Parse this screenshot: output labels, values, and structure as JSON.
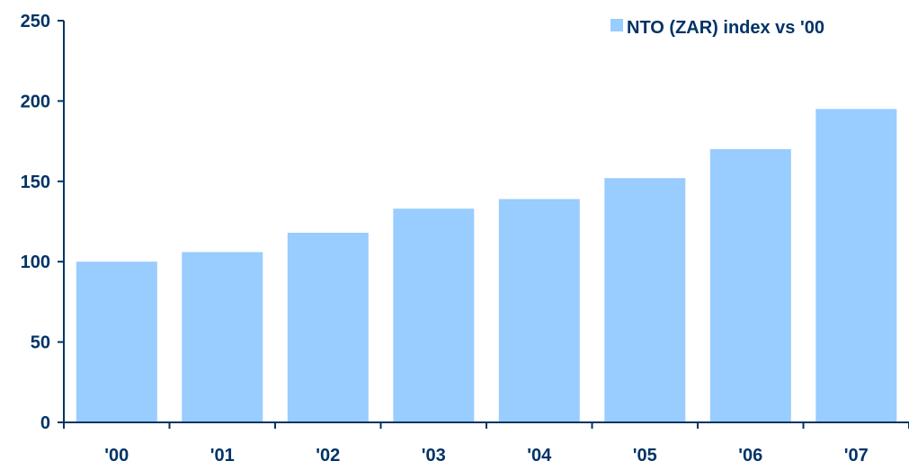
{
  "chart_data": {
    "type": "bar",
    "categories": [
      "'00",
      "'01",
      "'02",
      "'03",
      "'04",
      "'05",
      "'06",
      "'07"
    ],
    "series": [
      {
        "name": "NTO (ZAR) index vs '00",
        "values": [
          100,
          106,
          118,
          133,
          139,
          152,
          170,
          195
        ]
      }
    ],
    "ylim": [
      0,
      250
    ],
    "yticks": [
      0,
      50,
      100,
      150,
      200,
      250
    ],
    "ytick_labels": [
      "0",
      "50",
      "100",
      "150",
      "200",
      "250"
    ],
    "grid": false,
    "legend_position": "top-right",
    "title": "",
    "xlabel": "",
    "ylabel": ""
  },
  "colors": {
    "bar": "#99ccff",
    "axis": "#003366",
    "text": "#003366"
  }
}
